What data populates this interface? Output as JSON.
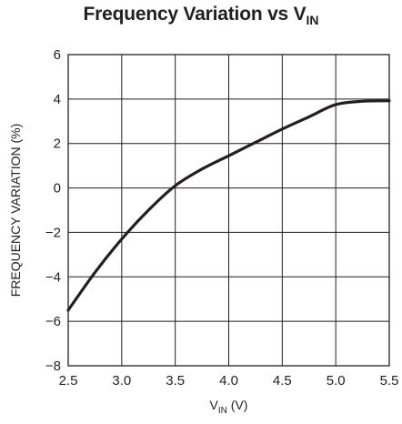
{
  "chart_data": {
    "type": "line",
    "title": "Frequency Variation vs V",
    "title_sub": "IN",
    "xlabel": "V",
    "xlabel_sub": "IN",
    "xlabel_unit": " (V)",
    "ylabel": "FREQUENCY VARIATION (%)",
    "xlim": [
      2.5,
      5.5
    ],
    "ylim": [
      -8,
      6
    ],
    "xticks": [
      "2.5",
      "3.0",
      "3.5",
      "4.0",
      "4.5",
      "5.0",
      "5.5"
    ],
    "yticks": [
      "6",
      "4",
      "2",
      "0",
      "−2",
      "−4",
      "−6",
      "−8"
    ],
    "grid": true,
    "series": [
      {
        "x": [
          2.5,
          2.75,
          3.0,
          3.25,
          3.5,
          3.75,
          4.0,
          4.25,
          4.5,
          4.75,
          5.0,
          5.25,
          5.5
        ],
        "y": [
          -5.5,
          -3.8,
          -2.3,
          -1.0,
          0.1,
          0.85,
          1.45,
          2.05,
          2.65,
          3.2,
          3.75,
          3.9,
          3.92
        ]
      }
    ],
    "line_color": "#231f20",
    "grid_color": "#231f20"
  }
}
